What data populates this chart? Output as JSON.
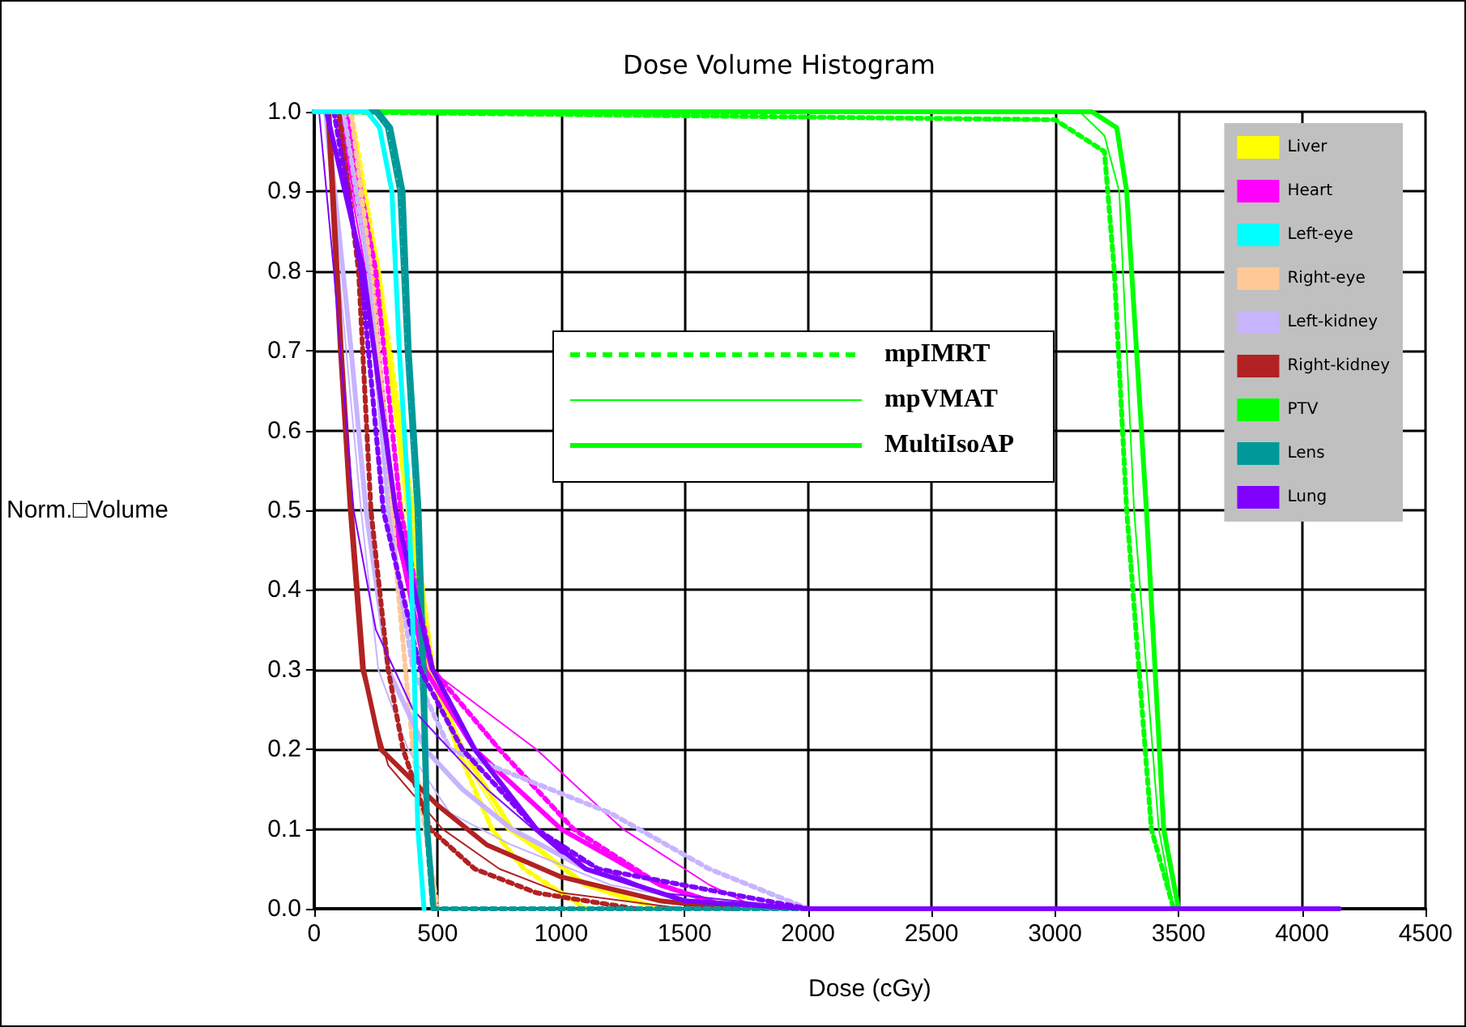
{
  "chart_data": {
    "type": "line",
    "title": "Dose Volume Histogram",
    "xlabel": "Dose (cGy)",
    "ylabel": "Norm.□Volume",
    "xlim": [
      0,
      4500
    ],
    "xticks": [
      0,
      500,
      1000,
      1500,
      2000,
      2500,
      3000,
      3500,
      4000,
      4500
    ],
    "ylim": [
      0,
      1
    ],
    "yticks": [
      {
        "value": 0,
        "label": "0.0"
      },
      0.1,
      0.2,
      0.3,
      0.4,
      0.5,
      0.6,
      0.7,
      0.8,
      0.9,
      {
        "value": 1,
        "label": "1.0"
      }
    ],
    "grid": true,
    "legend": "top right",
    "marker": "none",
    "annotations": [
      "mpIMRT",
      "mpVMAT",
      "MultiIsoAP"
    ],
    "series": [
      {
        "color": "#ffff00",
        "line_style": "dotted",
        "x": [
          0,
          150,
          260,
          400,
          480,
          580,
          720,
          850,
          1100
        ],
        "values": [
          1,
          1,
          0.8,
          0.5,
          0.3,
          0.2,
          0.1,
          0.05,
          0
        ]
      },
      {
        "color": "#ffff00",
        "line_style": "solid",
        "x": [
          0,
          110,
          240,
          360,
          460,
          580,
          780,
          1100,
          1400
        ],
        "values": [
          1,
          1,
          0.8,
          0.5,
          0.3,
          0.2,
          0.1,
          0.03,
          0
        ]
      },
      {
        "name": "Liver",
        "color": "#ffff00",
        "line_style": "solid",
        "x": [
          0,
          120,
          260,
          380,
          470,
          600,
          800,
          1100,
          1400
        ],
        "values": [
          1,
          1,
          0.8,
          0.5,
          0.3,
          0.2,
          0.1,
          0.03,
          0
        ]
      },
      {
        "color": "#ff00ff",
        "line_style": "dotted",
        "x": [
          0,
          130,
          250,
          350,
          480,
          750,
          1050,
          1400,
          1700
        ],
        "values": [
          1,
          1,
          0.8,
          0.5,
          0.3,
          0.2,
          0.1,
          0.03,
          0
        ]
      },
      {
        "color": "#ff00ff",
        "line_style": "solid",
        "x": [
          0,
          90,
          210,
          300,
          470,
          900,
          1250,
          1600,
          1800
        ],
        "values": [
          1,
          1,
          0.8,
          0.5,
          0.3,
          0.2,
          0.1,
          0.03,
          0
        ]
      },
      {
        "name": "Heart",
        "color": "#ff00ff",
        "line_style": "solid",
        "x": [
          0,
          100,
          230,
          320,
          450,
          650,
          1000,
          1400,
          1700
        ],
        "values": [
          1,
          1,
          0.8,
          0.5,
          0.3,
          0.2,
          0.1,
          0.03,
          0
        ]
      },
      {
        "name": "Left-eye",
        "color": "#00ffff",
        "line_style": "solid",
        "x": [
          0,
          215,
          265,
          315,
          345,
          385,
          405,
          420,
          445
        ],
        "values": [
          1,
          1,
          0.98,
          0.9,
          0.7,
          0.5,
          0.3,
          0.1,
          0
        ]
      },
      {
        "name": "Right-eye",
        "color": "#ffc896",
        "line_style": "dotted",
        "x": [
          0,
          150,
          230,
          290,
          340,
          400,
          450,
          500
        ],
        "values": [
          1,
          1,
          0.8,
          0.6,
          0.4,
          0.2,
          0.1,
          0
        ]
      },
      {
        "color": "#c8b4ff",
        "line_style": "dotted",
        "x": [
          0,
          120,
          220,
          300,
          400,
          550,
          1200,
          1600,
          2000
        ],
        "values": [
          1,
          1,
          0.8,
          0.5,
          0.3,
          0.2,
          0.12,
          0.05,
          0
        ]
      },
      {
        "color": "#c8b4ff",
        "line_style": "solid",
        "x": [
          0,
          40,
          130,
          190,
          260,
          380,
          550,
          800,
          1200,
          1700
        ],
        "values": [
          1,
          1,
          0.7,
          0.5,
          0.3,
          0.2,
          0.12,
          0.08,
          0.03,
          0
        ]
      },
      {
        "name": "Left-kidney",
        "color": "#c8b4ff",
        "line_style": "solid",
        "x": [
          0,
          50,
          150,
          210,
          300,
          450,
          600,
          800,
          1100,
          1500,
          1800
        ],
        "values": [
          1,
          1,
          0.7,
          0.5,
          0.3,
          0.2,
          0.15,
          0.1,
          0.05,
          0.01,
          0
        ]
      },
      {
        "color": "#b22222",
        "line_style": "dotted",
        "x": [
          0,
          100,
          180,
          230,
          300,
          360,
          470,
          650,
          900,
          1300
        ],
        "values": [
          1,
          1,
          0.8,
          0.5,
          0.3,
          0.2,
          0.1,
          0.05,
          0.02,
          0
        ]
      },
      {
        "color": "#b22222",
        "line_style": "solid",
        "x": [
          0,
          50,
          100,
          140,
          190,
          300,
          520,
          750,
          1000,
          1500
        ],
        "values": [
          1,
          1,
          0.7,
          0.5,
          0.3,
          0.18,
          0.1,
          0.05,
          0.02,
          0
        ]
      },
      {
        "name": "Right-kidney",
        "color": "#b22222",
        "line_style": "solid",
        "x": [
          0,
          60,
          110,
          150,
          200,
          270,
          500,
          700,
          1000,
          1400,
          1700
        ],
        "values": [
          1,
          1,
          0.7,
          0.5,
          0.3,
          0.2,
          0.13,
          0.08,
          0.04,
          0.01,
          0
        ]
      },
      {
        "color": "#00ff00",
        "line_style": "dotted",
        "x": [
          0,
          3000,
          3200,
          3240,
          3290,
          3390,
          3480,
          3600
        ],
        "values": [
          1,
          0.99,
          0.95,
          0.8,
          0.5,
          0.1,
          0,
          0
        ]
      },
      {
        "color": "#00ff00",
        "line_style": "solid",
        "x": [
          0,
          3100,
          3200,
          3260,
          3320,
          3420,
          3480,
          3600
        ],
        "values": [
          1,
          1,
          0.97,
          0.9,
          0.5,
          0.1,
          0,
          0
        ]
      },
      {
        "name": "PTV",
        "color": "#00ff00",
        "line_style": "solid",
        "x": [
          0,
          3150,
          3250,
          3290,
          3370,
          3440,
          3500,
          3600
        ],
        "values": [
          1,
          1,
          0.98,
          0.9,
          0.5,
          0.1,
          0,
          0
        ]
      },
      {
        "color": "#009999",
        "line_style": "dotted",
        "x": [
          0,
          250,
          300,
          350,
          380,
          420,
          440,
          455,
          480,
          4150
        ],
        "values": [
          1,
          1,
          0.98,
          0.9,
          0.7,
          0.5,
          0.3,
          0.1,
          0,
          0
        ]
      },
      {
        "color": "#009999",
        "line_style": "solid",
        "x": [
          0,
          240,
          290,
          340,
          370,
          410,
          430,
          450,
          475
        ],
        "values": [
          1,
          1,
          0.98,
          0.9,
          0.7,
          0.5,
          0.3,
          0.1,
          0
        ]
      },
      {
        "name": "Lens",
        "color": "#009999",
        "line_style": "solid",
        "x": [
          0,
          260,
          310,
          360,
          385,
          425,
          445,
          460,
          485
        ],
        "values": [
          1,
          1,
          0.98,
          0.9,
          0.7,
          0.5,
          0.3,
          0.1,
          0
        ]
      },
      {
        "color": "#7f00ff",
        "line_style": "dotted",
        "x": [
          0,
          80,
          190,
          280,
          430,
          600,
          900,
          1150,
          2000,
          4150
        ],
        "values": [
          1,
          1,
          0.8,
          0.5,
          0.3,
          0.2,
          0.1,
          0.05,
          0,
          0
        ]
      },
      {
        "color": "#7f00ff",
        "line_style": "solid",
        "x": [
          0,
          20,
          80,
          160,
          250,
          400,
          700,
          1000,
          1400,
          2000
        ],
        "values": [
          1,
          1,
          0.8,
          0.5,
          0.35,
          0.25,
          0.15,
          0.07,
          0.02,
          0
        ]
      },
      {
        "name": "Lung",
        "color": "#7f00ff",
        "line_style": "solid",
        "x": [
          0,
          50,
          200,
          330,
          480,
          650,
          900,
          1100,
          1500,
          2000,
          4150
        ],
        "values": [
          1,
          1,
          0.8,
          0.5,
          0.3,
          0.2,
          0.1,
          0.05,
          0.01,
          0,
          0
        ]
      }
    ]
  }
}
